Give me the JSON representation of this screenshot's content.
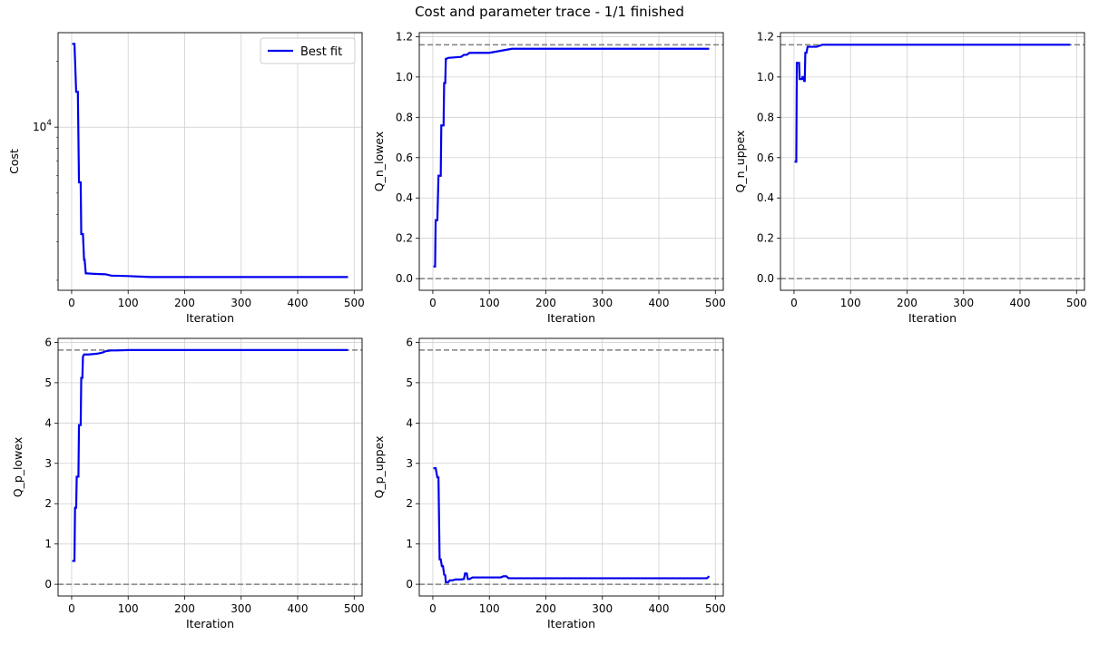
{
  "figure": {
    "title": "Cost and parameter trace - 1/1 finished"
  },
  "colors": {
    "series": "#0000ee",
    "reference": "#808080",
    "grid": "#d0d0d0"
  },
  "chart_data": [
    {
      "id": "cost",
      "type": "line",
      "xlabel": "Iteration",
      "ylabel": "Cost",
      "xlim": [
        -24,
        514
      ],
      "xticks": [
        0,
        100,
        200,
        300,
        400,
        500
      ],
      "yscale": "log",
      "ylim": [
        1800,
        27000
      ],
      "yticks": [
        {
          "value": 10000,
          "base": "10",
          "exp": "4"
        }
      ],
      "grid": true,
      "legend": {
        "position": "top-right",
        "label": "Best fit"
      },
      "series": [
        {
          "name": "Best fit",
          "x": [
            1,
            5,
            8,
            10,
            11,
            13,
            14,
            16,
            17,
            19,
            20,
            22,
            23,
            25,
            27,
            40,
            60,
            70,
            100,
            120,
            140,
            489
          ],
          "y": [
            24000,
            24000,
            14500,
            14500,
            14500,
            5600,
            5600,
            5600,
            3250,
            3250,
            3250,
            2480,
            2480,
            2150,
            2150,
            2140,
            2130,
            2100,
            2090,
            2080,
            2070,
            2070
          ]
        }
      ]
    },
    {
      "id": "q-n-lowex",
      "type": "line",
      "xlabel": "Iteration",
      "ylabel": "Q_n_lowex",
      "xlim": [
        -24,
        514
      ],
      "xticks": [
        0,
        100,
        200,
        300,
        400,
        500
      ],
      "ylim": [
        -0.058,
        1.22
      ],
      "yticks": [
        0.0,
        0.2,
        0.4,
        0.6,
        0.8,
        1.0,
        1.2
      ],
      "grid": true,
      "reference_lines": [
        0.0,
        1.16
      ],
      "series": [
        {
          "x": [
            1,
            4,
            5,
            7,
            8,
            10,
            12,
            14,
            15,
            18,
            19,
            20,
            22,
            23,
            24,
            27,
            50,
            55,
            60,
            65,
            80,
            100,
            120,
            130,
            140,
            200,
            489
          ],
          "y": [
            0.06,
            0.06,
            0.29,
            0.29,
            0.29,
            0.51,
            0.51,
            0.51,
            0.76,
            0.76,
            0.76,
            0.97,
            0.97,
            1.09,
            1.09,
            1.095,
            1.1,
            1.11,
            1.11,
            1.12,
            1.12,
            1.12,
            1.13,
            1.135,
            1.14,
            1.14,
            1.14
          ]
        }
      ]
    },
    {
      "id": "q-n-uppex",
      "type": "line",
      "xlabel": "Iteration",
      "ylabel": "Q_n_uppex",
      "xlim": [
        -24,
        514
      ],
      "xticks": [
        0,
        100,
        200,
        300,
        400,
        500
      ],
      "ylim": [
        -0.058,
        1.22
      ],
      "yticks": [
        0.0,
        0.2,
        0.4,
        0.6,
        0.8,
        1.0,
        1.2
      ],
      "grid": true,
      "reference_lines": [
        0.0,
        1.16
      ],
      "series": [
        {
          "x": [
            1,
            4,
            5,
            8,
            9,
            10,
            11,
            13,
            14,
            15,
            16,
            18,
            19,
            20,
            22,
            24,
            25,
            27,
            30,
            40,
            50,
            60,
            70,
            489
          ],
          "y": [
            0.58,
            0.58,
            1.07,
            1.07,
            1.07,
            0.99,
            0.99,
            0.99,
            0.99,
            1.0,
            1.0,
            0.98,
            0.98,
            1.12,
            1.12,
            1.15,
            1.15,
            1.15,
            1.15,
            1.15,
            1.16,
            1.16,
            1.16,
            1.16
          ]
        }
      ]
    },
    {
      "id": "q-p-lowex",
      "type": "line",
      "xlabel": "Iteration",
      "ylabel": "Q_p_lowex",
      "xlim": [
        -24,
        514
      ],
      "xticks": [
        0,
        100,
        200,
        300,
        400,
        500
      ],
      "ylim": [
        -0.29,
        6.1
      ],
      "yticks": [
        0,
        1,
        2,
        3,
        4,
        5,
        6
      ],
      "grid": true,
      "reference_lines": [
        0.0,
        5.81
      ],
      "series": [
        {
          "x": [
            1,
            5,
            6,
            8,
            9,
            12,
            13,
            16,
            17,
            19,
            20,
            22,
            24,
            30,
            45,
            55,
            60,
            70,
            80,
            100,
            489
          ],
          "y": [
            0.58,
            0.58,
            1.9,
            1.9,
            2.67,
            2.67,
            3.95,
            3.95,
            5.12,
            5.12,
            5.65,
            5.7,
            5.7,
            5.7,
            5.72,
            5.75,
            5.78,
            5.8,
            5.8,
            5.81,
            5.81
          ]
        }
      ]
    },
    {
      "id": "q-p-uppex",
      "type": "line",
      "xlabel": "Iteration",
      "ylabel": "Q_p_uppex",
      "xlim": [
        -24,
        514
      ],
      "xticks": [
        0,
        100,
        200,
        300,
        400,
        500
      ],
      "ylim": [
        -0.29,
        6.1
      ],
      "yticks": [
        0,
        1,
        2,
        3,
        4,
        5,
        6
      ],
      "grid": true,
      "reference_lines": [
        0.0,
        5.81
      ],
      "series": [
        {
          "x": [
            1,
            5,
            8,
            10,
            12,
            14,
            16,
            18,
            20,
            22,
            23,
            27,
            30,
            35,
            40,
            50,
            55,
            57,
            60,
            62,
            65,
            70,
            80,
            100,
            120,
            125,
            130,
            134,
            140,
            200,
            485,
            489
          ],
          "y": [
            2.88,
            2.88,
            2.65,
            2.65,
            0.62,
            0.62,
            0.45,
            0.45,
            0.24,
            0.22,
            0.05,
            0.05,
            0.1,
            0.1,
            0.12,
            0.12,
            0.13,
            0.27,
            0.27,
            0.13,
            0.13,
            0.17,
            0.17,
            0.17,
            0.17,
            0.2,
            0.2,
            0.15,
            0.15,
            0.15,
            0.15,
            0.2
          ]
        }
      ]
    }
  ]
}
